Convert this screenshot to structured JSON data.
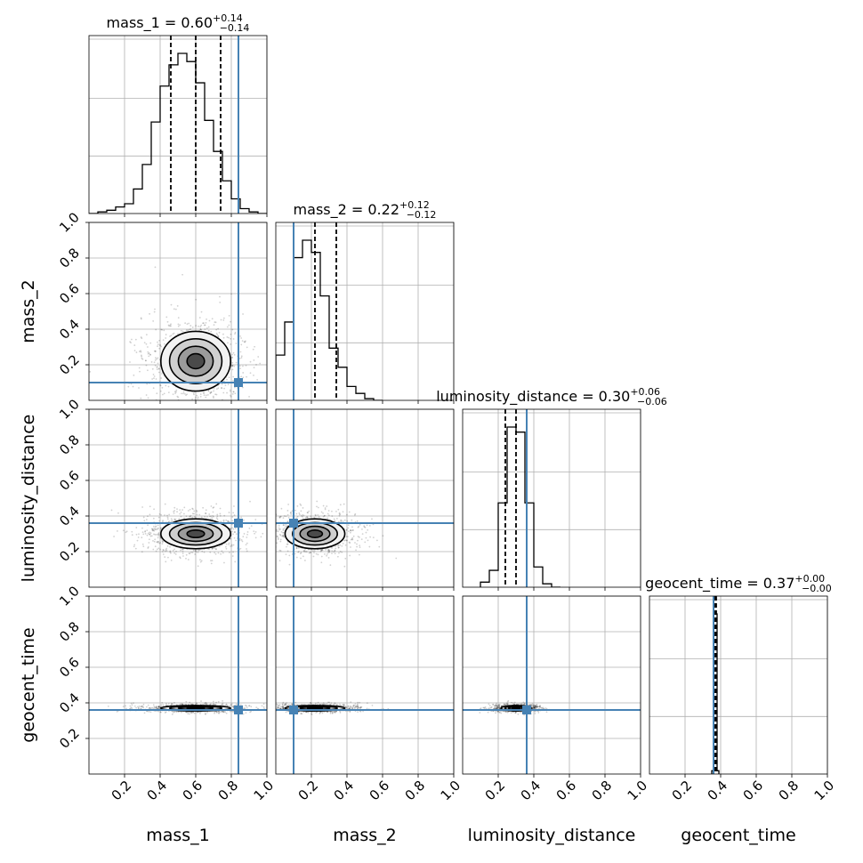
{
  "chart_data": {
    "type": "corner",
    "parameters": [
      "mass_1",
      "mass_2",
      "luminosity_distance",
      "geocent_time"
    ],
    "axis_labels": [
      "mass_1",
      "mass_2",
      "luminosity_distance",
      "geocent_time"
    ],
    "axis_range": [
      0,
      1
    ],
    "tick_labels": [
      "0.2",
      "0.4",
      "0.6",
      "0.8",
      "1.0"
    ],
    "grid": true,
    "truth_color": "#4682b4",
    "hist_color": "#000000",
    "truths": [
      0.84,
      0.1,
      0.36,
      0.36
    ],
    "titles": [
      {
        "param": "mass_1",
        "text": "mass_1 = 0.60",
        "sup": "+0.14",
        "sub": "−0.14"
      },
      {
        "param": "mass_2",
        "text": "mass_2 = 0.22",
        "sup": "+0.12",
        "sub": "−0.12"
      },
      {
        "param": "luminosity_distance",
        "text": "luminosity_distance = 0.30",
        "sup": "+0.06",
        "sub": "−0.06"
      },
      {
        "param": "geocent_time",
        "text": "geocent_time = 0.37",
        "sup": "+0.00",
        "sub": "−0.00"
      }
    ],
    "quantiles": [
      [
        0.46,
        0.6,
        0.74
      ],
      [
        0.1,
        0.22,
        0.34
      ],
      [
        0.24,
        0.3,
        0.36
      ],
      [
        0.365,
        0.37,
        0.375
      ]
    ],
    "histograms": [
      {
        "bins": [
          0,
          0.05,
          0.1,
          0.15,
          0.2,
          0.25,
          0.3,
          0.35,
          0.4,
          0.45,
          0.5,
          0.55,
          0.6,
          0.65,
          0.7,
          0.75,
          0.8,
          0.85,
          0.9,
          0.95,
          1.0
        ],
        "counts": [
          0,
          0.01,
          0.02,
          0.04,
          0.06,
          0.15,
          0.3,
          0.56,
          0.78,
          0.91,
          0.98,
          0.93,
          0.8,
          0.57,
          0.38,
          0.2,
          0.09,
          0.03,
          0.01,
          0.0
        ]
      },
      {
        "bins": [
          0,
          0.05,
          0.1,
          0.15,
          0.2,
          0.25,
          0.3,
          0.35,
          0.4,
          0.45,
          0.5,
          0.55,
          0.6
        ],
        "counts": [
          0.26,
          0.45,
          0.82,
          0.92,
          0.85,
          0.6,
          0.3,
          0.19,
          0.08,
          0.04,
          0.01,
          0.0
        ]
      },
      {
        "bins": [
          0.1,
          0.15,
          0.2,
          0.25,
          0.3,
          0.35,
          0.4,
          0.45,
          0.5,
          0.55
        ],
        "counts": [
          0.03,
          0.1,
          0.5,
          0.95,
          0.92,
          0.5,
          0.12,
          0.02,
          0.0
        ]
      },
      {
        "bins": [
          0.35,
          0.36,
          0.37,
          0.38,
          0.39
        ],
        "counts": [
          0.02,
          0.97,
          0.97,
          0.02
        ]
      }
    ],
    "pairs": [
      {
        "x": "mass_1",
        "y": "mass_2",
        "mean": [
          0.6,
          0.22
        ],
        "sd": [
          0.14,
          0.12
        ]
      },
      {
        "x": "mass_1",
        "y": "luminosity_distance",
        "mean": [
          0.6,
          0.3
        ],
        "sd": [
          0.14,
          0.06
        ]
      },
      {
        "x": "mass_2",
        "y": "luminosity_distance",
        "mean": [
          0.22,
          0.3
        ],
        "sd": [
          0.12,
          0.06
        ]
      },
      {
        "x": "mass_1",
        "y": "geocent_time",
        "mean": [
          0.6,
          0.37
        ],
        "sd": [
          0.14,
          0.006
        ]
      },
      {
        "x": "mass_2",
        "y": "geocent_time",
        "mean": [
          0.22,
          0.37
        ],
        "sd": [
          0.12,
          0.006
        ]
      },
      {
        "x": "luminosity_distance",
        "y": "geocent_time",
        "mean": [
          0.3,
          0.37
        ],
        "sd": [
          0.06,
          0.006
        ]
      }
    ]
  }
}
